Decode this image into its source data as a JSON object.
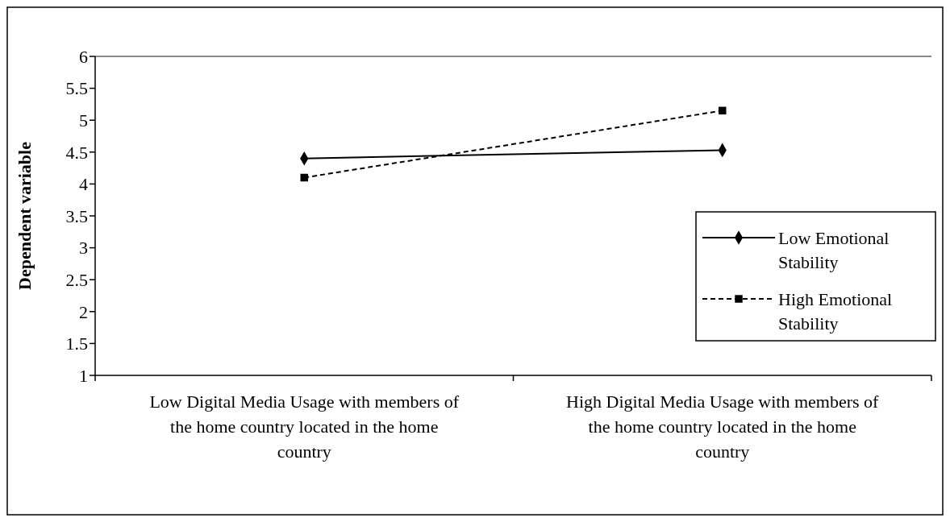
{
  "chart_data": {
    "type": "line",
    "ylabel": "Dependent variable",
    "categories": [
      "Low Digital Media Usage with members of the home country located in the home country",
      "High Digital Media Usage with members of the home country located in the home country"
    ],
    "series": [
      {
        "name": "Low Emotional Stability",
        "color": "#000000",
        "values": [
          4.4,
          4.53
        ],
        "marker": "diamond",
        "line_style": "solid"
      },
      {
        "name": "High Emotional Stability",
        "color": "#000000",
        "values": [
          4.1,
          5.15
        ],
        "marker": "square",
        "line_style": "dashed"
      }
    ],
    "ylim": [
      1,
      6
    ],
    "yticks": [
      1,
      1.5,
      2,
      2.5,
      3,
      3.5,
      4,
      4.5,
      5,
      5.5,
      6
    ],
    "grid": false,
    "legend": "right"
  }
}
